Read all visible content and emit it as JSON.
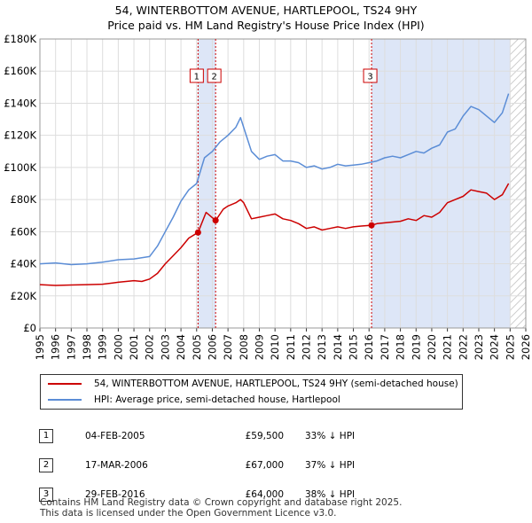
{
  "title_line1": "54, WINTERBOTTOM AVENUE, HARTLEPOOL, TS24 9HY",
  "title_line2": "Price paid vs. HM Land Registry's House Price Index (HPI)",
  "colors": {
    "property": "#cc0000",
    "hpi": "#5b8dd6",
    "shade": "#dde6f7",
    "hatch": "#bbbbbb"
  },
  "legend": {
    "property": "54, WINTERBOTTOM AVENUE, HARTLEPOOL, TS24 9HY (semi-detached house)",
    "hpi": "HPI: Average price, semi-detached house, Hartlepool"
  },
  "sales": [
    {
      "num": "1",
      "date": "04-FEB-2005",
      "price": "£59,500",
      "hpi": "33% ↓ HPI"
    },
    {
      "num": "2",
      "date": "17-MAR-2006",
      "price": "£67,000",
      "hpi": "37% ↓ HPI"
    },
    {
      "num": "3",
      "date": "29-FEB-2016",
      "price": "£64,000",
      "hpi": "38% ↓ HPI"
    }
  ],
  "footer_line1": "Contains HM Land Registry data © Crown copyright and database right 2025.",
  "footer_line2": "This data is licensed under the Open Government Licence v3.0.",
  "chart_data": {
    "type": "line",
    "xlim": [
      1995,
      2026
    ],
    "ylim": [
      0,
      180000
    ],
    "y_ticks": [
      0,
      20000,
      40000,
      60000,
      80000,
      100000,
      120000,
      140000,
      160000,
      180000
    ],
    "y_tick_labels": [
      "£0",
      "£20K",
      "£40K",
      "£60K",
      "£80K",
      "£100K",
      "£120K",
      "£140K",
      "£160K",
      "£180K"
    ],
    "x_ticks": [
      1995,
      1996,
      1997,
      1998,
      1999,
      2000,
      2001,
      2002,
      2003,
      2004,
      2005,
      2006,
      2007,
      2008,
      2009,
      2010,
      2011,
      2012,
      2013,
      2014,
      2015,
      2016,
      2017,
      2018,
      2019,
      2020,
      2021,
      2022,
      2023,
      2024,
      2025,
      2026
    ],
    "grid": true,
    "shaded_ranges": [
      [
        2005.09,
        2006.21
      ],
      [
        2016.16,
        2025.0
      ]
    ],
    "hatched_from": 2025.0,
    "markers": [
      {
        "label": "1",
        "x": 2005.09,
        "y": 59500
      },
      {
        "label": "2",
        "x": 2006.21,
        "y": 67000
      },
      {
        "label": "3",
        "x": 2016.16,
        "y": 64000
      }
    ],
    "series": [
      {
        "name": "54, WINTERBOTTOM AVENUE, HARTLEPOOL, TS24 9HY (semi-detached house)",
        "color": "#cc0000",
        "x": [
          1995,
          1996,
          1997,
          1998,
          1999,
          2000,
          2001,
          2001.5,
          2002,
          2002.5,
          2003,
          2003.5,
          2004,
          2004.5,
          2005.09,
          2005.6,
          2006.21,
          2006.7,
          2007,
          2007.5,
          2007.8,
          2008,
          2008.5,
          2009,
          2009.5,
          2010,
          2010.5,
          2011,
          2011.5,
          2012,
          2012.5,
          2013,
          2013.5,
          2014,
          2014.5,
          2015,
          2015.5,
          2016.16,
          2016.5,
          2017,
          2017.5,
          2018,
          2018.5,
          2019,
          2019.5,
          2020,
          2020.5,
          2021,
          2021.5,
          2022,
          2022.5,
          2023,
          2023.5,
          2024,
          2024.5,
          2024.9
        ],
        "y": [
          27000,
          26500,
          26800,
          27000,
          27300,
          28500,
          29500,
          29000,
          30500,
          34000,
          40000,
          45000,
          50000,
          56000,
          59500,
          72000,
          67000,
          74000,
          76000,
          78000,
          80000,
          78000,
          68000,
          69000,
          70000,
          71000,
          68000,
          67000,
          65000,
          62000,
          63000,
          61000,
          62000,
          63000,
          62000,
          63000,
          63500,
          64000,
          65000,
          65500,
          66000,
          66500,
          68000,
          67000,
          70000,
          69000,
          72000,
          78000,
          80000,
          82000,
          86000,
          85000,
          84000,
          80000,
          83000,
          90000
        ]
      },
      {
        "name": "HPI: Average price, semi-detached house, Hartlepool",
        "color": "#5b8dd6",
        "x": [
          1995,
          1996,
          1997,
          1998,
          1999,
          2000,
          2001,
          2002,
          2002.5,
          2003,
          2003.5,
          2004,
          2004.5,
          2005,
          2005.5,
          2006,
          2006.5,
          2007,
          2007.5,
          2007.8,
          2008,
          2008.5,
          2009,
          2009.5,
          2010,
          2010.5,
          2011,
          2011.5,
          2012,
          2012.5,
          2013,
          2013.5,
          2014,
          2014.5,
          2015,
          2015.5,
          2016,
          2016.5,
          2017,
          2017.5,
          2018,
          2018.5,
          2019,
          2019.5,
          2020,
          2020.5,
          2021,
          2021.5,
          2022,
          2022.5,
          2023,
          2023.5,
          2024,
          2024.5,
          2024.9
        ],
        "y": [
          40000,
          40500,
          39500,
          40000,
          41000,
          42500,
          43000,
          44500,
          51000,
          60000,
          69000,
          79000,
          86000,
          90000,
          106000,
          110000,
          116000,
          120000,
          125000,
          131000,
          125000,
          110000,
          105000,
          107000,
          108000,
          104000,
          104000,
          103000,
          100000,
          101000,
          99000,
          100000,
          102000,
          101000,
          101500,
          102000,
          103000,
          104000,
          106000,
          107000,
          106000,
          108000,
          110000,
          109000,
          112000,
          114000,
          122000,
          124000,
          132000,
          138000,
          136000,
          132000,
          128000,
          134000,
          146000
        ]
      }
    ]
  }
}
